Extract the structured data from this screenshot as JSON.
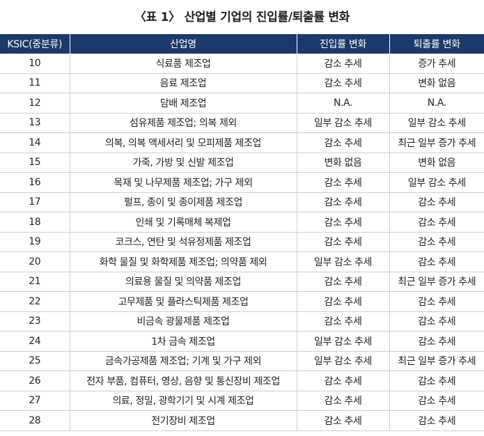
{
  "title": "〈표 1〉 산업별 기업의 진입률/퇴출률 변화",
  "headers": [
    "KSIC(중분류)",
    "산업명",
    "진입률 변화",
    "퇴출률 변화"
  ],
  "rows": [
    {
      "code": "10",
      "industry": "식료품 제조업",
      "entry": "감소 추세",
      "exit": "증가 추세"
    },
    {
      "code": "11",
      "industry": "음료 제조업",
      "entry": "감소 추세",
      "exit": "변화 없음"
    },
    {
      "code": "12",
      "industry": "담배 제조업",
      "entry": "N.A.",
      "exit": "N.A."
    },
    {
      "code": "13",
      "industry": "섬유제품 제조업; 의복 제외",
      "entry": "일부 감소 추세",
      "exit": "일부 감소 추세"
    },
    {
      "code": "14",
      "industry": "의복, 의복 액세서리 및 모피제품 제조업",
      "entry": "감소 추세",
      "exit": "최근 일부 증가 추세"
    },
    {
      "code": "15",
      "industry": "가죽, 가방 및 신발 제조업",
      "entry": "변화 없음",
      "exit": "변화 없음"
    },
    {
      "code": "16",
      "industry": "목재 및 나무제품 제조업; 가구 제외",
      "entry": "감소 추세",
      "exit": "일부 감소 추세"
    },
    {
      "code": "17",
      "industry": "펄프, 종이 및 종이제품 제조업",
      "entry": "감소 추세",
      "exit": "감소 추세"
    },
    {
      "code": "18",
      "industry": "인쇄 및 기록매체 복제업",
      "entry": "감소 추세",
      "exit": "감소 추세"
    },
    {
      "code": "19",
      "industry": "코크스, 연탄 및 석유정제품 제조업",
      "entry": "감소 추세",
      "exit": "감소 추세"
    },
    {
      "code": "20",
      "industry": "화학 물질 및 화학제품 제조업; 의약품 제외",
      "entry": "일부 감소 추세",
      "exit": "감소 추세"
    },
    {
      "code": "21",
      "industry": "의료용 물질 및 의약품 제조업",
      "entry": "감소 추세",
      "exit": "최근 일부 증가 추세"
    },
    {
      "code": "22",
      "industry": "고무제품 및 플라스틱제품 제조업",
      "entry": "감소 추세",
      "exit": "감소 추세"
    },
    {
      "code": "23",
      "industry": "비금속 광물제품 제조업",
      "entry": "감소 추세",
      "exit": "감소 추세"
    },
    {
      "code": "24",
      "industry": "1차 금속 제조업",
      "entry": "일부 감소 추세",
      "exit": "감소 추세"
    },
    {
      "code": "25",
      "industry": "금속가공제품 제조업; 기계 및 가구 제외",
      "entry": "일부 감소 추세",
      "exit": "최근 일부 증가 추세"
    },
    {
      "code": "26",
      "industry": "전자 부품, 컴퓨터, 영상, 음향 및 통신장비 제조업",
      "entry": "감소 추세",
      "exit": "감소 추세"
    },
    {
      "code": "27",
      "industry": "의료, 정밀, 광학기기 및 시계 제조업",
      "entry": "감소 추세",
      "exit": "감소 추세"
    },
    {
      "code": "28",
      "industry": "전기장비 제조업",
      "entry": "감소 추세",
      "exit": "감소 추세"
    }
  ],
  "colors": {
    "header_bg": "#1b3a6b",
    "header_text": "#ffffff",
    "grid": "#cfcfcf"
  }
}
